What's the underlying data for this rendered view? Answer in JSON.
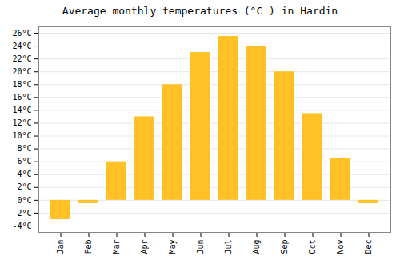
{
  "chart_data": {
    "type": "bar",
    "title": "Average monthly temperatures (°C ) in Hardin",
    "categories": [
      "Jan",
      "Feb",
      "Mar",
      "Apr",
      "May",
      "Jun",
      "Jul",
      "Aug",
      "Sep",
      "Oct",
      "Nov",
      "Dec"
    ],
    "values": [
      -3,
      -0.5,
      6,
      13,
      18,
      23,
      25.5,
      24,
      20,
      13.5,
      6.5,
      -0.5
    ],
    "color": "#FFC125",
    "ylim": [
      -5,
      27
    ],
    "yticks": [
      {
        "value": -4,
        "label": "-4°C"
      },
      {
        "value": -2,
        "label": "-2°C"
      },
      {
        "value": 0,
        "label": "0°C"
      },
      {
        "value": 2,
        "label": "2°C"
      },
      {
        "value": 4,
        "label": "4°C"
      },
      {
        "value": 6,
        "label": "6°C"
      },
      {
        "value": 8,
        "label": "8°C"
      },
      {
        "value": 10,
        "label": "10°C"
      },
      {
        "value": 12,
        "label": "12°C"
      },
      {
        "value": 14,
        "label": "14°C"
      },
      {
        "value": 16,
        "label": "16°C"
      },
      {
        "value": 18,
        "label": "18°C"
      },
      {
        "value": 20,
        "label": "20°C"
      },
      {
        "value": 22,
        "label": "22°C"
      },
      {
        "value": 24,
        "label": "24°C"
      },
      {
        "value": 26,
        "label": "26°C"
      }
    ],
    "grid": true
  }
}
